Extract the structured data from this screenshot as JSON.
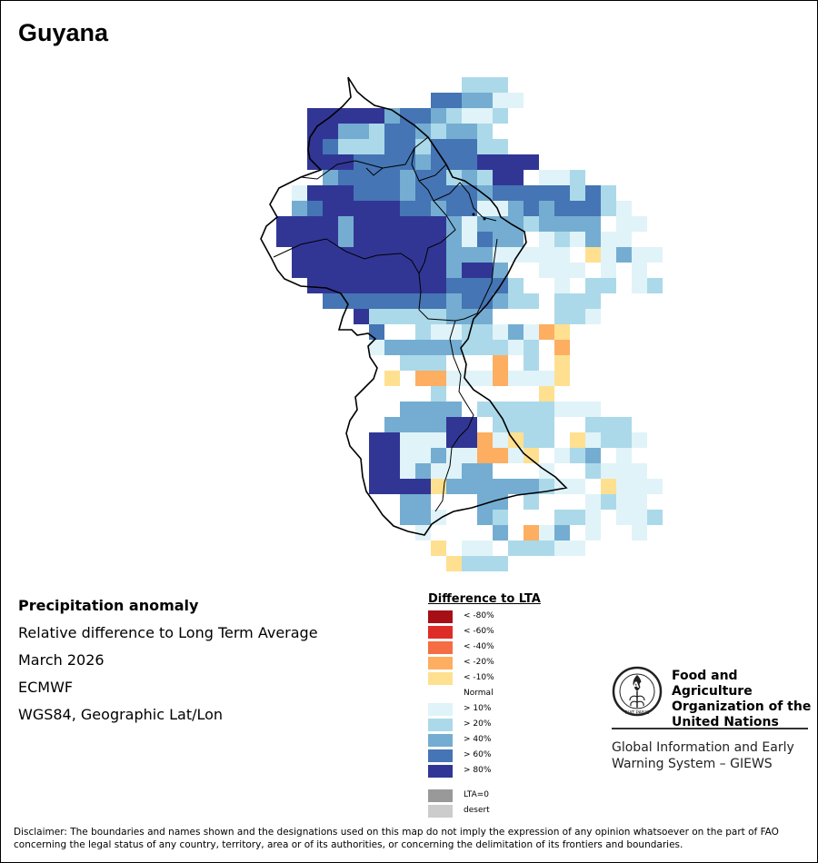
{
  "title": "Guyana",
  "info": {
    "heading": "Precipitation anomaly",
    "line1": "Relative difference to Long Term Average",
    "line2": "March 2026",
    "line3": "ECMWF",
    "line4": "WGS84, Geographic Lat/Lon"
  },
  "legend": {
    "title": "Difference to LTA",
    "items": [
      {
        "label": "< -80%",
        "color": "#a50f15"
      },
      {
        "label": "< -60%",
        "color": "#de2d26"
      },
      {
        "label": "< -40%",
        "color": "#f46d43"
      },
      {
        "label": "< -20%",
        "color": "#fdae61"
      },
      {
        "label": "< -10%",
        "color": "#fee090"
      },
      {
        "label": "Normal",
        "color": "#ffffff"
      },
      {
        "label": "> 10%",
        "color": "#e0f3f8"
      },
      {
        "label": "> 20%",
        "color": "#abd9e9"
      },
      {
        "label": "> 40%",
        "color": "#74add1"
      },
      {
        "label": "> 60%",
        "color": "#4575b4"
      },
      {
        "label": "> 80%",
        "color": "#313695"
      }
    ],
    "extra": [
      {
        "label": "LTA=0",
        "color": "#999999"
      },
      {
        "label": "desert",
        "color": "#cccccc"
      }
    ]
  },
  "fao": {
    "name_line1": "Food and Agriculture",
    "name_line2": "Organization of the",
    "name_line3": "United Nations",
    "logo_text": "FAO",
    "logo_motto": "FIAT PANIS",
    "giews_line1": "Global Information and Early",
    "giews_line2": "Warning System – GIEWS"
  },
  "disclaimer": "Disclaimer: The boundaries and names shown and the designations used on this map do not imply the expression of any opinion whatsoever on the part of FAO concerning the legal status of any country, territory, area or of its authorities, or concerning the delimitation of its frontiers and boundaries.",
  "grid": {
    "classes": {
      "a": "#313695",
      "b": "#4575b4",
      "c": "#74add1",
      "d": "#abd9e9",
      "e": "#e0f3f8",
      "w": "#ffffff",
      "y": "#fee090",
      "o": "#fdae61"
    },
    "rows": [
      "..........................",
      "..........................",
      ".............ddd..........",
      "...........bbccee.........",
      "...aaaaacbbcdeed..........",
      "...aaccdbbcdccd...........",
      "...abdddbbdbbbdd..........",
      "...aaabbbbcbbbaaaa........",
      "....cbbbbcbbdcdaa.eed.....",
      "..eaaabbbcbbbbcbbbbbdbd...",
      "..cbaaaaabbcbbeecbcbbbde..",
      ".aaaacaaaaaacecccdcccc.ee.",
      ".aaaacaaaaaacebccwedecee..",
      "..aaaaaaaaaaccceeeeewyecee",
      "..aaaaaaaaaacaacwweeewewe.",
      "...aaaaaaaaabbbbdwwewddwed",
      "....bbbbbbbbcbbcddwdddww..",
      "......adddddcccwwwwdde....",
      ".......bwwdeeddeceoy......",
      ".......ecccccdddedwo......",
      "........wdddwwwowdwy......",
      "........ywooeeeoeeey......",
      "........wwwdwwwwwwyw......",
      ".......wwccccwdddddeee....",
      ".......wccccaawddddwwddd..",
      ".......aaeeeaaoeyddwyedde.",
      ".......aaeeceeooeywedcwe..",
      ".......aaeceeccwwwewwdeee.",
      ".......aaaayccccccdeewyeee.",
      ".........ccwwwccwdwwwedeew",
      ".........ccewwcdwwwddeweed",
      "..........ewwwwcwoecwewwe.",
      "...........yweewdddee.....",
      "............yddd..........",
      "..........................",
      "..........................",
      "..........................",
      "......................"
    ]
  }
}
